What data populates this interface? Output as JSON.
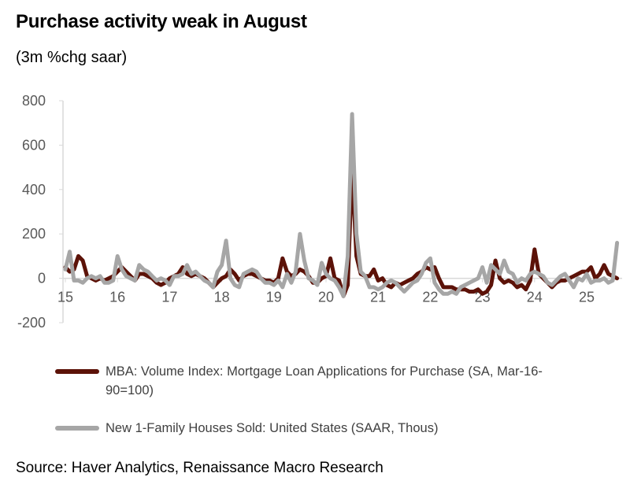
{
  "title": "Purchase activity weak in August",
  "subtitle": "(3m %chg saar)",
  "source": "Source: Haver Analytics, Renaissance Macro Research",
  "chart_data": {
    "type": "line",
    "title": "Purchase activity weak in August",
    "subtitle": "(3m %chg saar)",
    "xlabel": "",
    "ylabel": "",
    "ylim": [
      -200,
      800
    ],
    "yticks": [
      "800",
      "600",
      "400",
      "200",
      "0",
      "-200"
    ],
    "xticks": [
      "15",
      "16",
      "17",
      "18",
      "19",
      "20",
      "21",
      "22",
      "23",
      "24",
      "25"
    ],
    "grid": false,
    "legend": "bottom",
    "x": [
      "2015-01",
      "2015-02",
      "2015-03",
      "2015-04",
      "2015-05",
      "2015-06",
      "2015-07",
      "2015-08",
      "2015-09",
      "2015-10",
      "2015-11",
      "2015-12",
      "2016-01",
      "2016-02",
      "2016-03",
      "2016-04",
      "2016-05",
      "2016-06",
      "2016-07",
      "2016-08",
      "2016-09",
      "2016-10",
      "2016-11",
      "2016-12",
      "2017-01",
      "2017-02",
      "2017-03",
      "2017-04",
      "2017-05",
      "2017-06",
      "2017-07",
      "2017-08",
      "2017-09",
      "2017-10",
      "2017-11",
      "2017-12",
      "2018-01",
      "2018-02",
      "2018-03",
      "2018-04",
      "2018-05",
      "2018-06",
      "2018-07",
      "2018-08",
      "2018-09",
      "2018-10",
      "2018-11",
      "2018-12",
      "2019-01",
      "2019-02",
      "2019-03",
      "2019-04",
      "2019-05",
      "2019-06",
      "2019-07",
      "2019-08",
      "2019-09",
      "2019-10",
      "2019-11",
      "2019-12",
      "2020-01",
      "2020-02",
      "2020-03",
      "2020-04",
      "2020-05",
      "2020-06",
      "2020-07",
      "2020-08",
      "2020-09",
      "2020-10",
      "2020-11",
      "2020-12",
      "2021-01",
      "2021-02",
      "2021-03",
      "2021-04",
      "2021-05",
      "2021-06",
      "2021-07",
      "2021-08",
      "2021-09",
      "2021-10",
      "2021-11",
      "2021-12",
      "2022-01",
      "2022-02",
      "2022-03",
      "2022-04",
      "2022-05",
      "2022-06",
      "2022-07",
      "2022-08",
      "2022-09",
      "2022-10",
      "2022-11",
      "2022-12",
      "2023-01",
      "2023-02",
      "2023-03",
      "2023-04",
      "2023-05",
      "2023-06",
      "2023-07",
      "2023-08",
      "2023-09",
      "2023-10",
      "2023-11",
      "2023-12",
      "2024-01",
      "2024-02",
      "2024-03",
      "2024-04",
      "2024-05",
      "2024-06",
      "2024-07",
      "2024-08",
      "2024-09",
      "2024-10",
      "2024-11",
      "2024-12",
      "2025-01",
      "2025-02",
      "2025-03",
      "2025-04",
      "2025-05",
      "2025-06",
      "2025-07",
      "2025-08"
    ],
    "series": [
      {
        "name": "MBA: Volume Index: Mortgage Loan Applications for Purchase (SA, Mar-16-90=100)",
        "color": "#5c1208",
        "values": [
          50,
          30,
          40,
          100,
          80,
          10,
          0,
          -10,
          0,
          -10,
          0,
          10,
          30,
          50,
          30,
          10,
          -10,
          20,
          20,
          10,
          0,
          -20,
          -30,
          -20,
          0,
          10,
          20,
          50,
          20,
          10,
          20,
          10,
          0,
          -20,
          -40,
          -20,
          0,
          10,
          40,
          20,
          -10,
          10,
          20,
          20,
          10,
          0,
          -10,
          -10,
          -20,
          0,
          90,
          30,
          10,
          20,
          40,
          30,
          10,
          -20,
          -20,
          0,
          10,
          90,
          0,
          -10,
          -80,
          -30,
          500,
          100,
          20,
          10,
          10,
          40,
          -10,
          0,
          -30,
          -40,
          -20,
          -30,
          -20,
          -10,
          0,
          20,
          30,
          50,
          40,
          50,
          0,
          -40,
          -40,
          -40,
          -50,
          -50,
          -50,
          -60,
          -60,
          -50,
          -70,
          -60,
          -30,
          80,
          0,
          -20,
          -10,
          -20,
          -40,
          -30,
          -50,
          -10,
          130,
          20,
          0,
          -20,
          -40,
          -20,
          -10,
          -10,
          0,
          10,
          20,
          30,
          30,
          50,
          0,
          20,
          60,
          20,
          10,
          0
        ]
      },
      {
        "name": "New 1-Family Houses Sold: United States (SAAR, Thous)",
        "color": "#a6a6a6",
        "values": [
          40,
          120,
          -10,
          -10,
          -20,
          0,
          10,
          0,
          10,
          -20,
          -20,
          -10,
          100,
          40,
          10,
          0,
          -10,
          60,
          40,
          30,
          10,
          -10,
          0,
          -10,
          -30,
          10,
          10,
          20,
          60,
          20,
          30,
          10,
          -10,
          -20,
          -40,
          30,
          60,
          170,
          0,
          -30,
          -40,
          20,
          30,
          40,
          30,
          0,
          -20,
          -20,
          -30,
          -10,
          -40,
          20,
          -20,
          30,
          200,
          80,
          0,
          -10,
          -30,
          70,
          20,
          0,
          -10,
          -40,
          -80,
          100,
          740,
          200,
          30,
          10,
          -40,
          -40,
          -50,
          -40,
          -20,
          -10,
          -20,
          -40,
          -60,
          -40,
          -20,
          -10,
          20,
          70,
          90,
          -20,
          -50,
          -70,
          -70,
          -60,
          -70,
          -40,
          -30,
          -20,
          -10,
          0,
          50,
          -20,
          60,
          40,
          20,
          80,
          30,
          20,
          -20,
          0,
          -10,
          20,
          30,
          20,
          10,
          -20,
          -30,
          -10,
          10,
          20,
          -10,
          -40,
          0,
          -10,
          20,
          -20,
          -10,
          -10,
          0,
          -20,
          -10,
          160
        ]
      }
    ]
  }
}
